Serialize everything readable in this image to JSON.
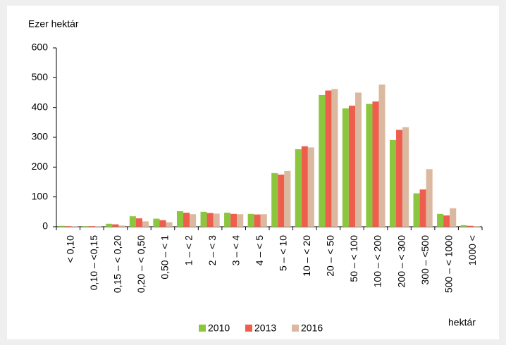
{
  "chart_data": {
    "type": "bar",
    "y_label": "Ezer hektár",
    "x_label": "hektár",
    "categories": [
      "< 0,10",
      "0,10 – <0,15",
      "0,15 – < 0,20",
      "0,20 – < 0,50",
      "0,50 – < 1",
      "1 – < 2",
      "2 – < 3",
      "3 – < 4",
      "4 – < 5",
      "5 – < 10",
      "10 – < 20",
      "20 – < 50",
      "50 – < 100",
      "100 – < 200",
      "200 – < 300",
      "300 – <500",
      "500 – < 1000",
      "1000 <"
    ],
    "series": [
      {
        "name": "2010",
        "color": "#8cc63e",
        "values": [
          3,
          2,
          10,
          35,
          27,
          52,
          50,
          47,
          43,
          180,
          260,
          442,
          397,
          412,
          291,
          112,
          43,
          5
        ]
      },
      {
        "name": "2013",
        "color": "#ef5d4c",
        "values": [
          2,
          2,
          8,
          28,
          22,
          47,
          46,
          43,
          41,
          175,
          270,
          457,
          406,
          420,
          325,
          125,
          38,
          3
        ]
      },
      {
        "name": "2016",
        "color": "#dbb9a1",
        "values": [
          1,
          1,
          4,
          18,
          15,
          42,
          44,
          42,
          42,
          187,
          266,
          462,
          450,
          477,
          334,
          193,
          62,
          2
        ]
      }
    ],
    "ylim": [
      0,
      600
    ],
    "yticks": [
      0,
      100,
      200,
      300,
      400,
      500,
      600
    ],
    "legend": "bottom"
  }
}
